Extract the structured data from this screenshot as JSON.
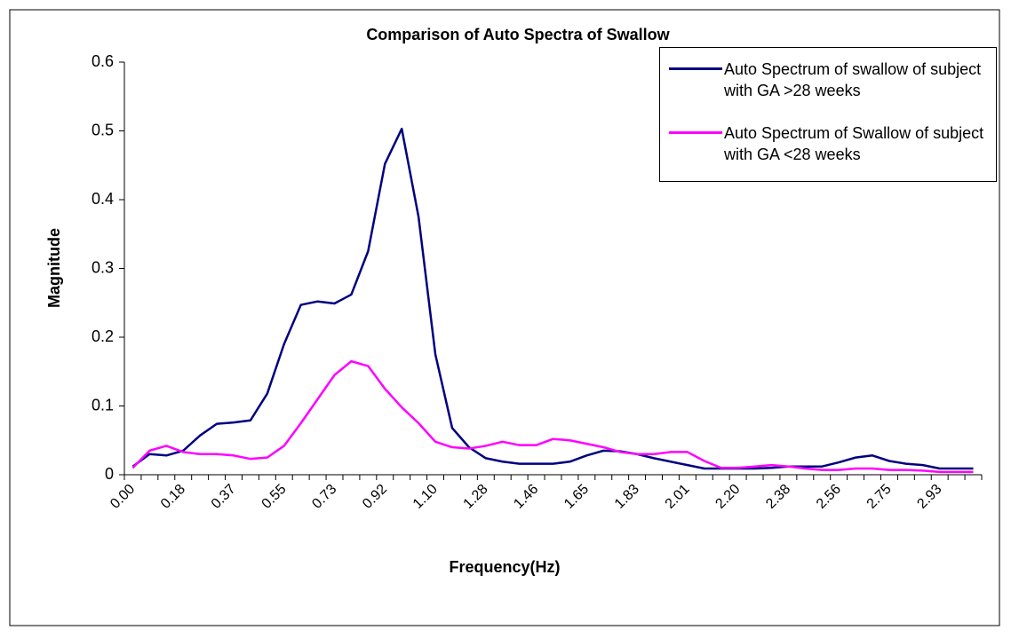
{
  "chart_data": {
    "type": "line",
    "title": "Comparison of Auto Spectra of Swallow",
    "x_label": "Frequency(Hz)",
    "y_label": "Magnitude",
    "categories": [
      "0.00",
      null,
      null,
      "0.18",
      null,
      null,
      "0.37",
      null,
      null,
      "0.55",
      null,
      null,
      "0.73",
      null,
      null,
      "0.92",
      null,
      null,
      "1.10",
      null,
      null,
      "1.28",
      null,
      null,
      "1.46",
      null,
      null,
      "1.65",
      null,
      null,
      "1.83",
      null,
      null,
      "2.01",
      null,
      null,
      "2.20",
      null,
      null,
      "2.38",
      null,
      null,
      "2.56",
      null,
      null,
      "2.75",
      null,
      null,
      "2.93",
      null,
      null
    ],
    "series": [
      {
        "name": "Auto Spectrum of swallow of subject with GA >28 weeks",
        "color": "#000080",
        "values": [
          0.012,
          0.03,
          0.028,
          0.035,
          0.057,
          0.074,
          0.076,
          0.079,
          0.118,
          0.19,
          0.247,
          0.252,
          0.249,
          0.262,
          0.325,
          0.452,
          0.503,
          0.375,
          0.175,
          0.068,
          0.04,
          0.024,
          0.019,
          0.016,
          0.016,
          0.016,
          0.019,
          0.028,
          0.035,
          0.034,
          0.03,
          0.024,
          0.019,
          0.014,
          0.009,
          0.009,
          0.009,
          0.009,
          0.01,
          0.012,
          0.012,
          0.012,
          0.018,
          0.025,
          0.028,
          0.02,
          0.016,
          0.014,
          0.009,
          0.009,
          0.009
        ]
      },
      {
        "name": "Auto Spectrum of Swallow of subject with GA <28 weeks",
        "color": "#ff00ff",
        "values": [
          0.01,
          0.035,
          0.042,
          0.033,
          0.03,
          0.03,
          0.028,
          0.023,
          0.025,
          0.042,
          0.075,
          0.11,
          0.145,
          0.165,
          0.158,
          0.125,
          0.098,
          0.075,
          0.048,
          0.04,
          0.038,
          0.042,
          0.048,
          0.043,
          0.043,
          0.052,
          0.05,
          0.045,
          0.04,
          0.033,
          0.03,
          0.03,
          0.033,
          0.033,
          0.02,
          0.01,
          0.01,
          0.012,
          0.014,
          0.012,
          0.009,
          0.007,
          0.007,
          0.009,
          0.009,
          0.007,
          0.007,
          0.006,
          0.004,
          0.004,
          0.004
        ]
      }
    ],
    "ylim": [
      0,
      0.6
    ],
    "yticks": [
      0,
      0.1,
      0.2,
      0.3,
      0.4,
      0.5,
      0.6
    ],
    "grid": false
  }
}
